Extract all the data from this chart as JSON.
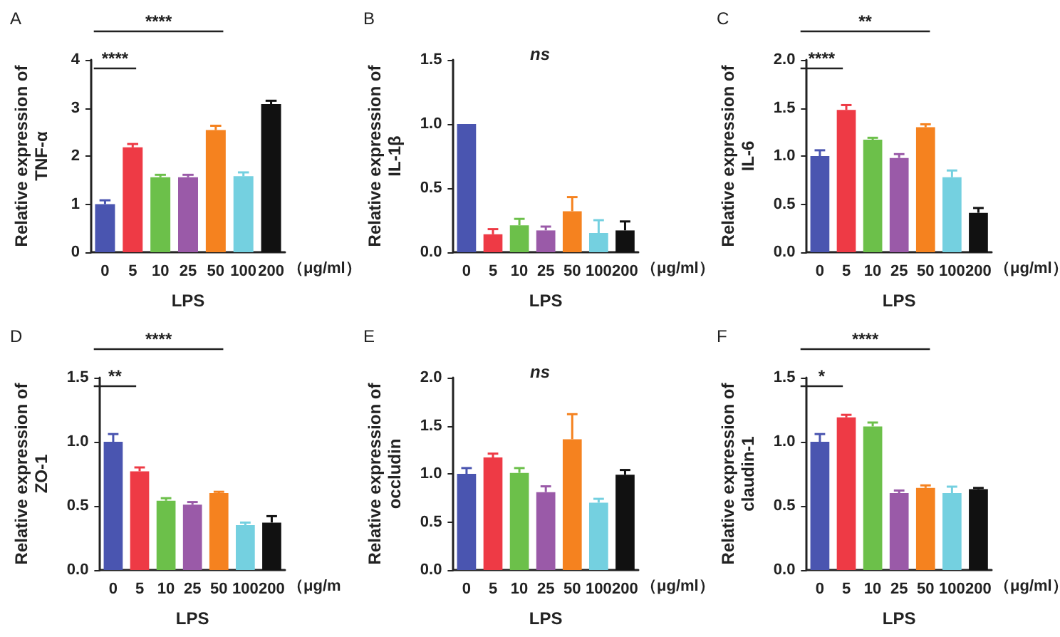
{
  "chart_data": [
    {
      "type": "bar",
      "title": "A",
      "ylabel": "Relative expression of TNF-α",
      "xlabel": "LPS",
      "categories": [
        "0",
        "5",
        "10",
        "25",
        "50",
        "100",
        "200"
      ],
      "values": [
        1.0,
        2.18,
        1.56,
        1.56,
        2.54,
        1.58,
        3.08
      ],
      "errors": [
        [
          1.0,
          1.08
        ],
        [
          2.18,
          2.25
        ],
        [
          1.56,
          1.61
        ],
        [
          1.56,
          1.61
        ],
        [
          2.54,
          2.63
        ],
        [
          1.58,
          1.66
        ],
        [
          3.08,
          3.15
        ]
      ],
      "colors": [
        "#4a55b0",
        "#ee3a45",
        "#6cc04a",
        "#9a5aa8",
        "#f5821f",
        "#74d0e0",
        "#111111"
      ],
      "ylim": [
        0,
        4
      ],
      "yticks": [
        0,
        1,
        2,
        3,
        4
      ],
      "grid": false,
      "annotations": [
        "（μg/ml）",
        "****",
        "****"
      ]
    },
    {
      "type": "bar",
      "title": "B",
      "ylabel": "Relative expression of IL-1β",
      "xlabel": "LPS",
      "categories": [
        "0",
        "5",
        "10",
        "25",
        "50",
        "100",
        "200"
      ],
      "values": [
        1.0,
        0.14,
        0.21,
        0.17,
        0.32,
        0.15,
        0.17
      ],
      "errors": [
        null,
        [
          0.14,
          0.18
        ],
        [
          0.21,
          0.26
        ],
        [
          0.17,
          0.2
        ],
        [
          0.32,
          0.43
        ],
        [
          0.15,
          0.25
        ],
        [
          0.17,
          0.24
        ]
      ],
      "colors": [
        "#4a55b0",
        "#ee3a45",
        "#6cc04a",
        "#9a5aa8",
        "#f5821f",
        "#74d0e0",
        "#111111"
      ],
      "ylim": [
        0,
        1.5
      ],
      "yticks": [
        {
          "value": 0,
          "label": "0.0"
        },
        {
          "value": 0.5,
          "label": "0.5"
        },
        {
          "value": 1,
          "label": "1.0"
        },
        {
          "value": 1.5,
          "label": "1.5"
        }
      ],
      "grid": false,
      "annotations": [
        "（μg/ml）",
        "ns"
      ]
    },
    {
      "type": "bar",
      "title": "C",
      "ylabel": "Relative expression of IL-6",
      "xlabel": "LPS",
      "categories": [
        "0",
        "5",
        "10",
        "25",
        "50",
        "100",
        "200"
      ],
      "values": [
        1.0,
        1.48,
        1.17,
        0.98,
        1.3,
        0.78,
        0.41
      ],
      "errors": [
        [
          1.0,
          1.06
        ],
        [
          1.48,
          1.53
        ],
        [
          1.17,
          1.19
        ],
        [
          0.98,
          1.02
        ],
        [
          1.3,
          1.33
        ],
        [
          0.78,
          0.85
        ],
        [
          0.41,
          0.46
        ]
      ],
      "colors": [
        "#4a55b0",
        "#ee3a45",
        "#6cc04a",
        "#9a5aa8",
        "#f5821f",
        "#74d0e0",
        "#111111"
      ],
      "ylim": [
        0,
        2
      ],
      "yticks": [
        {
          "value": 0,
          "label": "0.0"
        },
        {
          "value": 0.5,
          "label": "0.5"
        },
        {
          "value": 1,
          "label": "1.0"
        },
        {
          "value": 1.5,
          "label": "1.5"
        },
        {
          "value": 2,
          "label": "2.0"
        }
      ],
      "grid": false,
      "annotations": [
        "（μg/ml）",
        "**",
        "****"
      ]
    },
    {
      "type": "bar",
      "title": "D",
      "ylabel": "Relative expression of ZO-1",
      "xlabel": "LPS",
      "categories": [
        "0",
        "5",
        "10",
        "25",
        "50",
        "100",
        "200"
      ],
      "values": [
        1.0,
        0.77,
        0.54,
        0.51,
        0.6,
        0.35,
        0.37
      ],
      "errors": [
        [
          1.0,
          1.06
        ],
        [
          0.77,
          0.8
        ],
        [
          0.54,
          0.56
        ],
        [
          0.51,
          0.53
        ],
        [
          0.6,
          0.61
        ],
        [
          0.35,
          0.37
        ],
        [
          0.37,
          0.42
        ]
      ],
      "colors": [
        "#4a55b0",
        "#ee3a45",
        "#6cc04a",
        "#9a5aa8",
        "#f5821f",
        "#74d0e0",
        "#111111"
      ],
      "ylim": [
        0,
        1.5
      ],
      "yticks": [
        {
          "value": 0,
          "label": "0.0"
        },
        {
          "value": 0.5,
          "label": "0.5"
        },
        {
          "value": 1,
          "label": "1.0"
        },
        {
          "value": 1.5,
          "label": "1.5"
        }
      ],
      "grid": false,
      "annotations": [
        "（μg/m",
        "****",
        "**"
      ]
    },
    {
      "type": "bar",
      "title": "E",
      "ylabel": "Relative expression of occludin",
      "xlabel": "LPS",
      "categories": [
        "0",
        "5",
        "10",
        "25",
        "50",
        "100",
        "200"
      ],
      "values": [
        1.0,
        1.17,
        1.01,
        0.81,
        1.36,
        0.7,
        0.99
      ],
      "errors": [
        [
          1.0,
          1.06
        ],
        [
          1.17,
          1.21
        ],
        [
          1.01,
          1.06
        ],
        [
          0.81,
          0.87
        ],
        [
          1.36,
          1.62
        ],
        [
          0.7,
          0.74
        ],
        [
          0.99,
          1.04
        ]
      ],
      "colors": [
        "#4a55b0",
        "#ee3a45",
        "#6cc04a",
        "#9a5aa8",
        "#f5821f",
        "#74d0e0",
        "#111111"
      ],
      "ylim": [
        0,
        2
      ],
      "yticks": [
        {
          "value": 0,
          "label": "0.0"
        },
        {
          "value": 0.5,
          "label": "0.5"
        },
        {
          "value": 1,
          "label": "1.0"
        },
        {
          "value": 1.5,
          "label": "1.5"
        },
        {
          "value": 2,
          "label": "2.0"
        }
      ],
      "grid": false,
      "annotations": [
        "（μg/ml）",
        "ns"
      ]
    },
    {
      "type": "bar",
      "title": "F",
      "ylabel": "Relative expression of claudin-1",
      "xlabel": "LPS",
      "categories": [
        "0",
        "5",
        "10",
        "25",
        "50",
        "100",
        "200"
      ],
      "values": [
        1.0,
        1.19,
        1.12,
        0.6,
        0.64,
        0.6,
        0.63
      ],
      "errors": [
        [
          1.0,
          1.06
        ],
        [
          1.19,
          1.21
        ],
        [
          1.12,
          1.15
        ],
        [
          0.6,
          0.62
        ],
        [
          0.64,
          0.66
        ],
        [
          0.6,
          0.65
        ],
        [
          0.63,
          0.64
        ]
      ],
      "colors": [
        "#4a55b0",
        "#ee3a45",
        "#6cc04a",
        "#9a5aa8",
        "#f5821f",
        "#74d0e0",
        "#111111"
      ],
      "ylim": [
        0,
        1.5
      ],
      "yticks": [
        {
          "value": 0,
          "label": "0.0"
        },
        {
          "value": 0.5,
          "label": "0.5"
        },
        {
          "value": 1,
          "label": "1.0"
        },
        {
          "value": 1.5,
          "label": "1.5"
        }
      ],
      "grid": false,
      "annotations": [
        "（μg/ml）",
        "****",
        "*"
      ]
    }
  ]
}
